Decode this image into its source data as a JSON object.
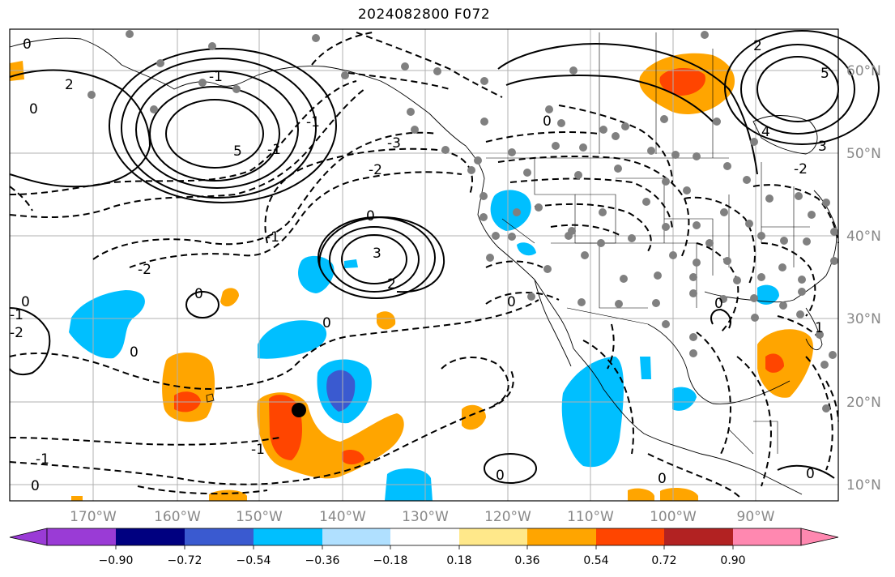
{
  "title": "2024082800 F072",
  "map": {
    "lon_labels": [
      "170°W",
      "160°W",
      "150°W",
      "140°W",
      "130°W",
      "120°W",
      "110°W",
      "100°W",
      "90°W"
    ],
    "lat_labels": [
      "60°N",
      "50°N",
      "40°N",
      "30°N",
      "20°N",
      "10°N"
    ],
    "contour_labels": [
      "0",
      "2",
      "5",
      "-1",
      "-2",
      "-3",
      "0",
      "-1",
      "-2",
      "0",
      "3",
      "2",
      "-1",
      "0",
      "0",
      "-1",
      "0",
      "-2",
      "0",
      "0",
      "4",
      "5",
      "-1",
      "0",
      "0",
      "0",
      "-1",
      "0",
      "1",
      "0",
      "2",
      "3",
      "-2",
      "0",
      "-1"
    ]
  },
  "colorbar": {
    "labels": [
      "−0.90",
      "−0.72",
      "−0.54",
      "−0.36",
      "−0.18",
      "0.18",
      "0.36",
      "0.54",
      "0.72",
      "0.90"
    ],
    "colors": [
      "#9a3bd6",
      "#000080",
      "#3a5ad0",
      "#00bfff",
      "#b0e0ff",
      "#ffffff",
      "#ffe88a",
      "#ffa500",
      "#ff4500",
      "#b22222",
      "#ff88b0"
    ]
  },
  "colors": {
    "land_line": "#000000",
    "grid": "#b0b0b0",
    "station_dot": "#808080"
  }
}
